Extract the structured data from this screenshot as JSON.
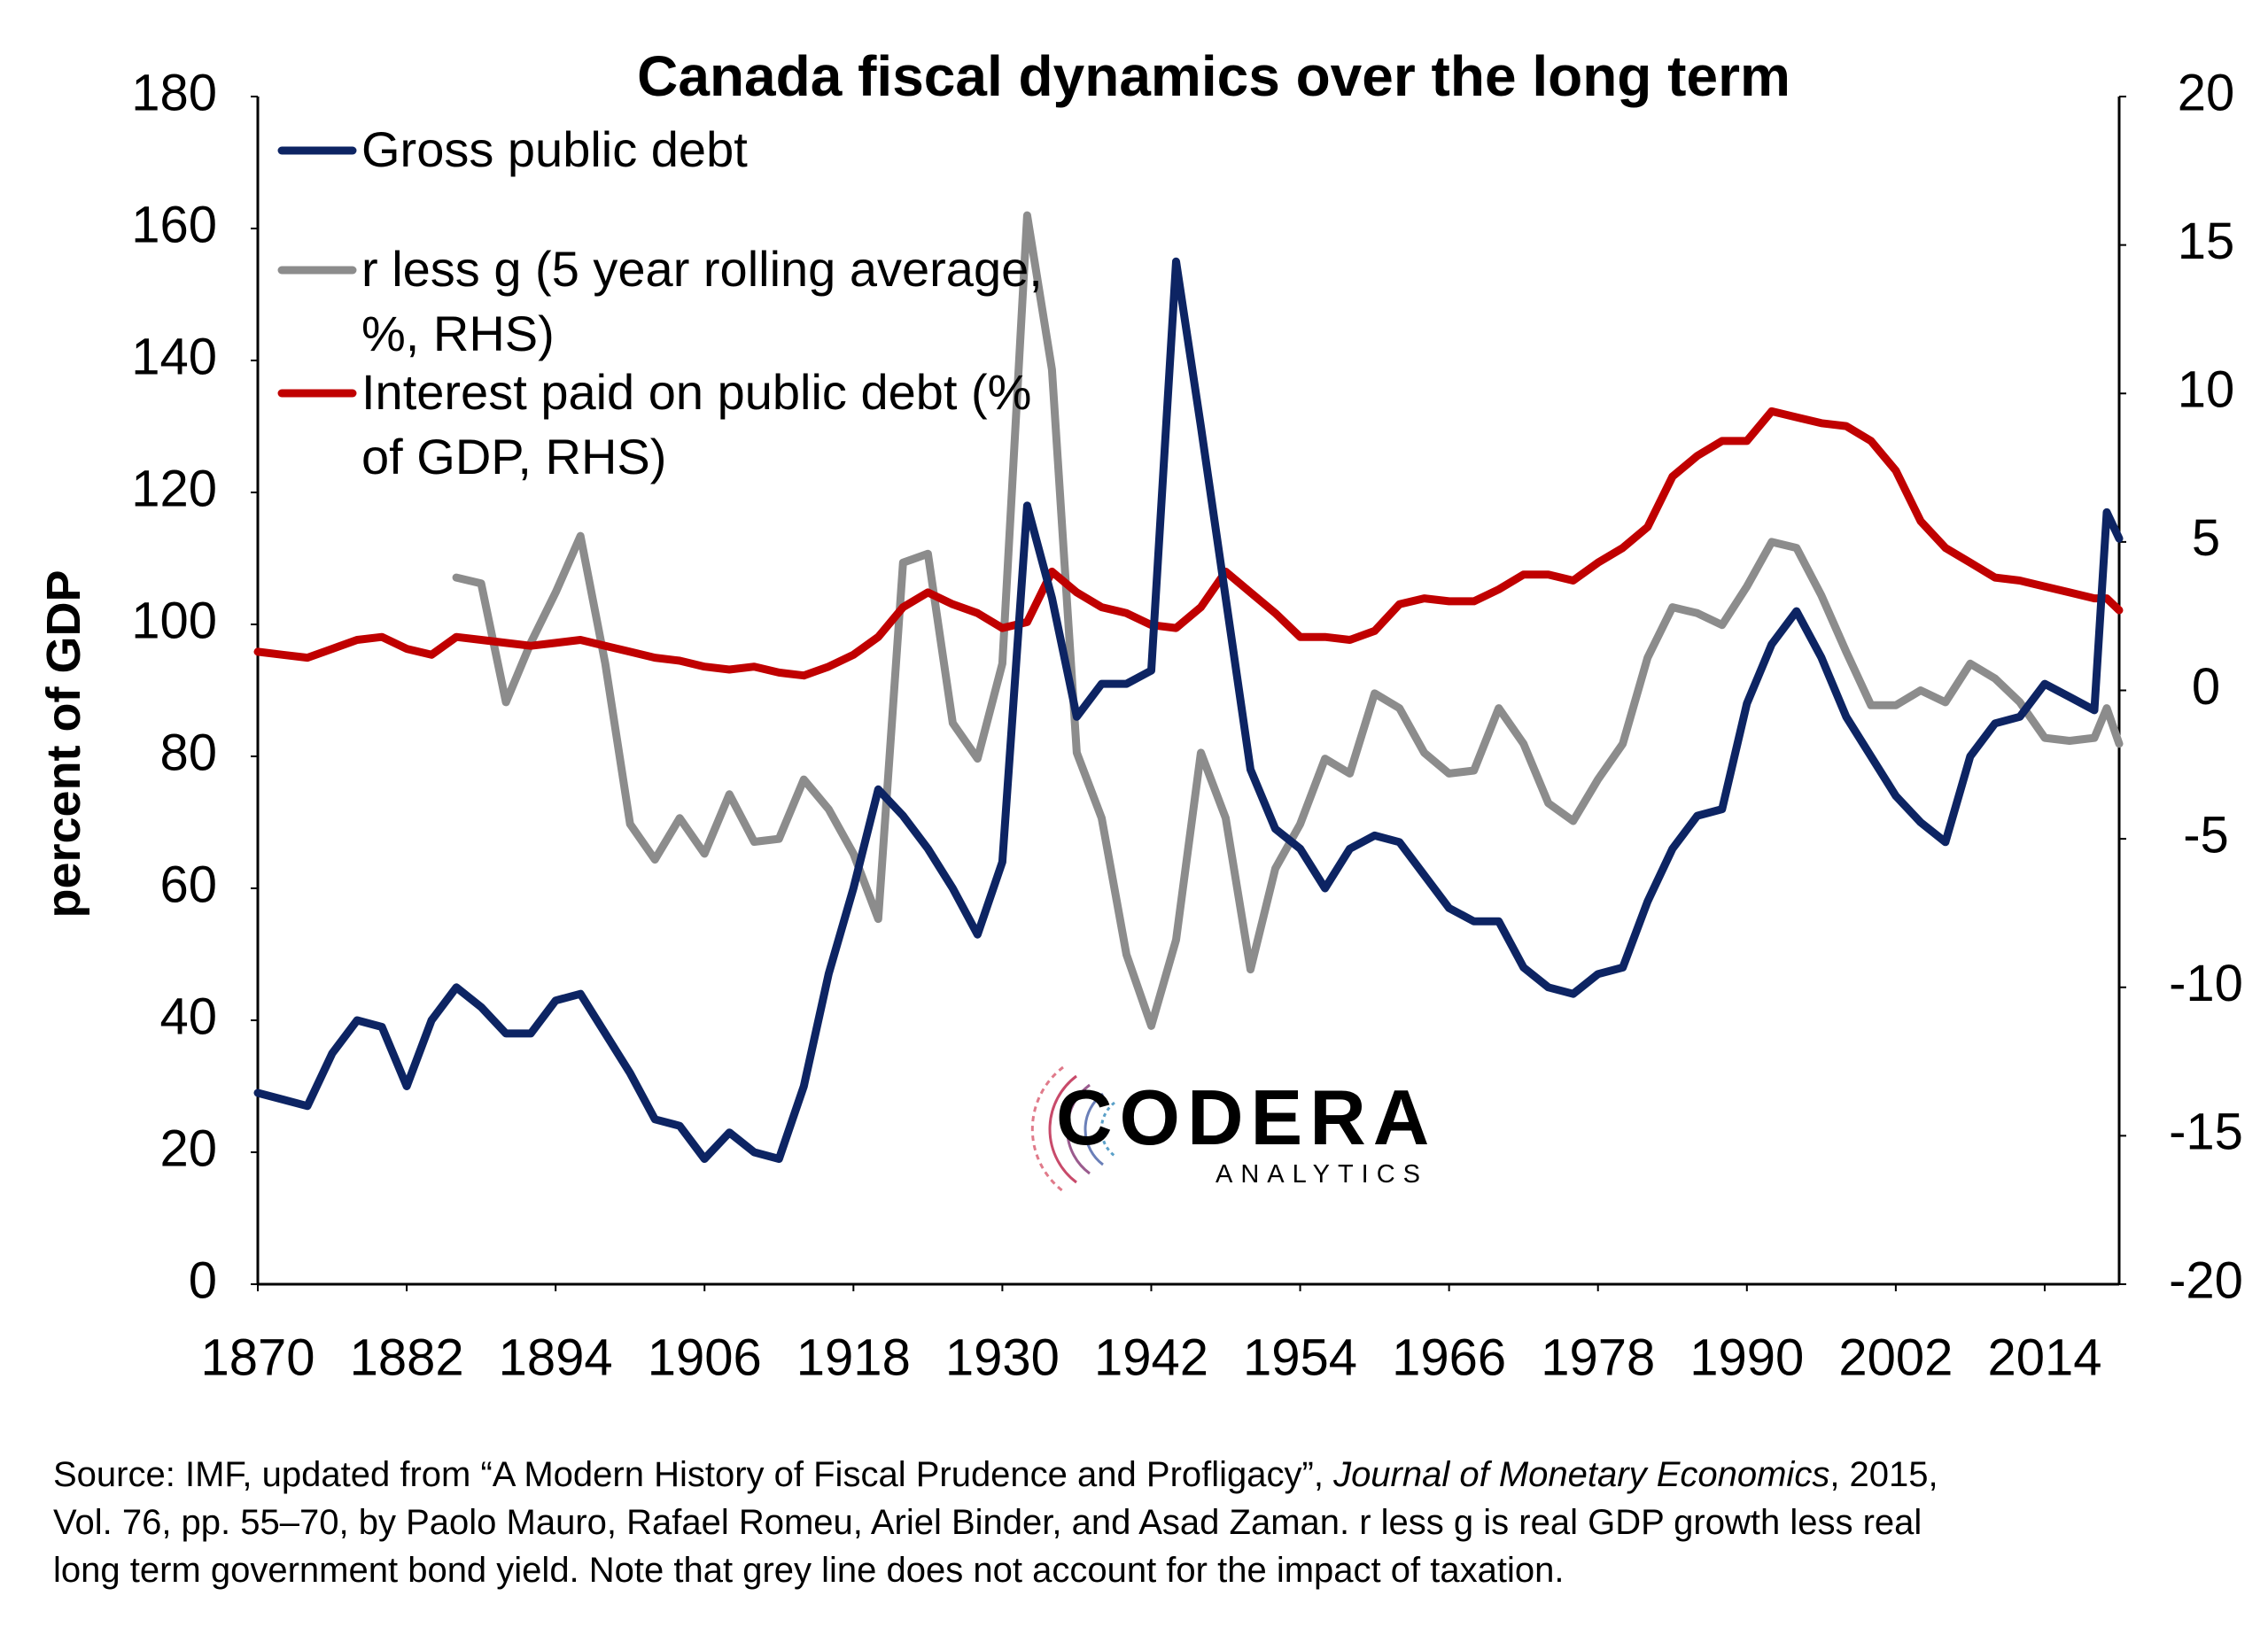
{
  "chart_data": {
    "type": "line",
    "title": "Canada fiscal dynamics over the long term",
    "y_label": "percent of GDP",
    "x": [
      1870,
      1872,
      1874,
      1876,
      1878,
      1880,
      1882,
      1884,
      1886,
      1888,
      1890,
      1892,
      1894,
      1896,
      1898,
      1900,
      1902,
      1904,
      1906,
      1908,
      1910,
      1912,
      1914,
      1916,
      1918,
      1920,
      1922,
      1924,
      1926,
      1928,
      1930,
      1932,
      1934,
      1936,
      1938,
      1940,
      1942,
      1944,
      1946,
      1948,
      1950,
      1952,
      1954,
      1956,
      1958,
      1960,
      1962,
      1964,
      1966,
      1968,
      1970,
      1972,
      1974,
      1976,
      1978,
      1980,
      1982,
      1984,
      1986,
      1988,
      1990,
      1992,
      1994,
      1996,
      1998,
      2000,
      2002,
      2004,
      2006,
      2008,
      2010,
      2012,
      2014,
      2016,
      2018,
      2019,
      2020
    ],
    "series": [
      {
        "name": "Gross public debt",
        "color": "#0d2463",
        "axis": "y",
        "values": [
          29,
          28,
          27,
          35,
          40,
          39,
          30,
          40,
          45,
          42,
          38,
          38,
          43,
          44,
          38,
          32,
          25,
          24,
          19,
          23,
          20,
          19,
          30,
          47,
          60,
          75,
          71,
          66,
          60,
          53,
          64,
          118,
          104,
          86,
          91,
          91,
          93,
          155,
          130,
          104,
          78,
          69,
          66,
          60,
          66,
          68,
          67,
          62,
          57,
          55,
          55,
          48,
          45,
          44,
          47,
          48,
          58,
          66,
          71,
          72,
          88,
          97,
          102,
          95,
          86,
          80,
          74,
          70,
          67,
          80,
          85,
          86,
          91,
          89,
          87,
          117,
          113
        ]
      },
      {
        "name": "r less g (5 year rolling average, %, RHS)",
        "color": "#8c8c8c",
        "axis": "y2",
        "values": [
          null,
          null,
          null,
          null,
          null,
          null,
          null,
          null,
          3.8,
          3.6,
          -0.4,
          1.6,
          3.3,
          5.2,
          0.9,
          -4.5,
          -5.7,
          -4.3,
          -5.5,
          -3.5,
          -5.1,
          -5.0,
          -3.0,
          -4.0,
          -5.5,
          -7.7,
          4.3,
          4.6,
          -1.1,
          -2.3,
          0.9,
          16,
          10.8,
          -2.1,
          -4.3,
          -8.9,
          -11.3,
          -8.4,
          -2.1,
          -4.3,
          -9.4,
          -6.0,
          -4.5,
          -2.3,
          -2.8,
          -0.1,
          -0.6,
          -2.1,
          -2.8,
          -2.7,
          -0.6,
          -1.8,
          -3.8,
          -4.4,
          -3.0,
          -1.8,
          1.1,
          2.8,
          2.6,
          2.2,
          3.5,
          5.0,
          4.8,
          3.2,
          1.3,
          -0.5,
          -0.5,
          0.0,
          -0.4,
          0.9,
          0.4,
          -0.4,
          -1.6,
          -1.7,
          -1.6,
          -0.6,
          -1.8
        ]
      },
      {
        "name": "Interest paid on public debt (% of GDP, RHS)",
        "color": "#c00000",
        "axis": "y2",
        "values": [
          1.3,
          1.2,
          1.1,
          1.4,
          1.7,
          1.8,
          1.4,
          1.2,
          1.8,
          1.7,
          1.6,
          1.5,
          1.6,
          1.7,
          1.5,
          1.3,
          1.1,
          1.0,
          0.8,
          0.7,
          0.8,
          0.6,
          0.5,
          0.8,
          1.2,
          1.8,
          2.8,
          3.3,
          2.9,
          2.6,
          2.1,
          2.3,
          4.0,
          3.3,
          2.8,
          2.6,
          2.2,
          2.1,
          2.8,
          4.0,
          3.3,
          2.6,
          1.8,
          1.8,
          1.7,
          2.0,
          2.9,
          3.1,
          3.0,
          3.0,
          3.4,
          3.9,
          3.9,
          3.7,
          4.3,
          4.8,
          5.5,
          7.2,
          7.9,
          8.4,
          8.4,
          9.4,
          9.2,
          9.0,
          8.9,
          8.4,
          7.4,
          5.7,
          4.8,
          4.3,
          3.8,
          3.7,
          3.5,
          3.3,
          3.1,
          3.1,
          2.7
        ]
      }
    ],
    "xlim": [
      1870,
      2020
    ],
    "xticks": [
      1870,
      1882,
      1894,
      1906,
      1918,
      1930,
      1942,
      1954,
      1966,
      1978,
      1990,
      2002,
      2014
    ],
    "ylim": [
      0,
      180
    ],
    "yticks": [
      0,
      20,
      40,
      60,
      80,
      100,
      120,
      140,
      160,
      180
    ],
    "y2lim": [
      -20,
      20
    ],
    "y2ticks": [
      -20,
      -15,
      -10,
      -5,
      0,
      5,
      10,
      15,
      20
    ],
    "grid": false,
    "legend": "upper left",
    "watermark": {
      "name": "CODERA",
      "sub": "ANALYTICS"
    },
    "source": {
      "line1_start": "Source: IMF, updated from “A Modern History of Fiscal Prudence and Profligacy”, ",
      "line1_journal": "Journal of Monetary Economics",
      "line1_end": ", 2015,",
      "line2": "Vol. 76, pp. 55–70, by Paolo Mauro, Rafael Romeu, Ariel Binder, and Asad Zaman. r less g is real GDP growth less real",
      "line3": "long term government bond yield. Note that grey line does not account for the impact of taxation."
    }
  }
}
